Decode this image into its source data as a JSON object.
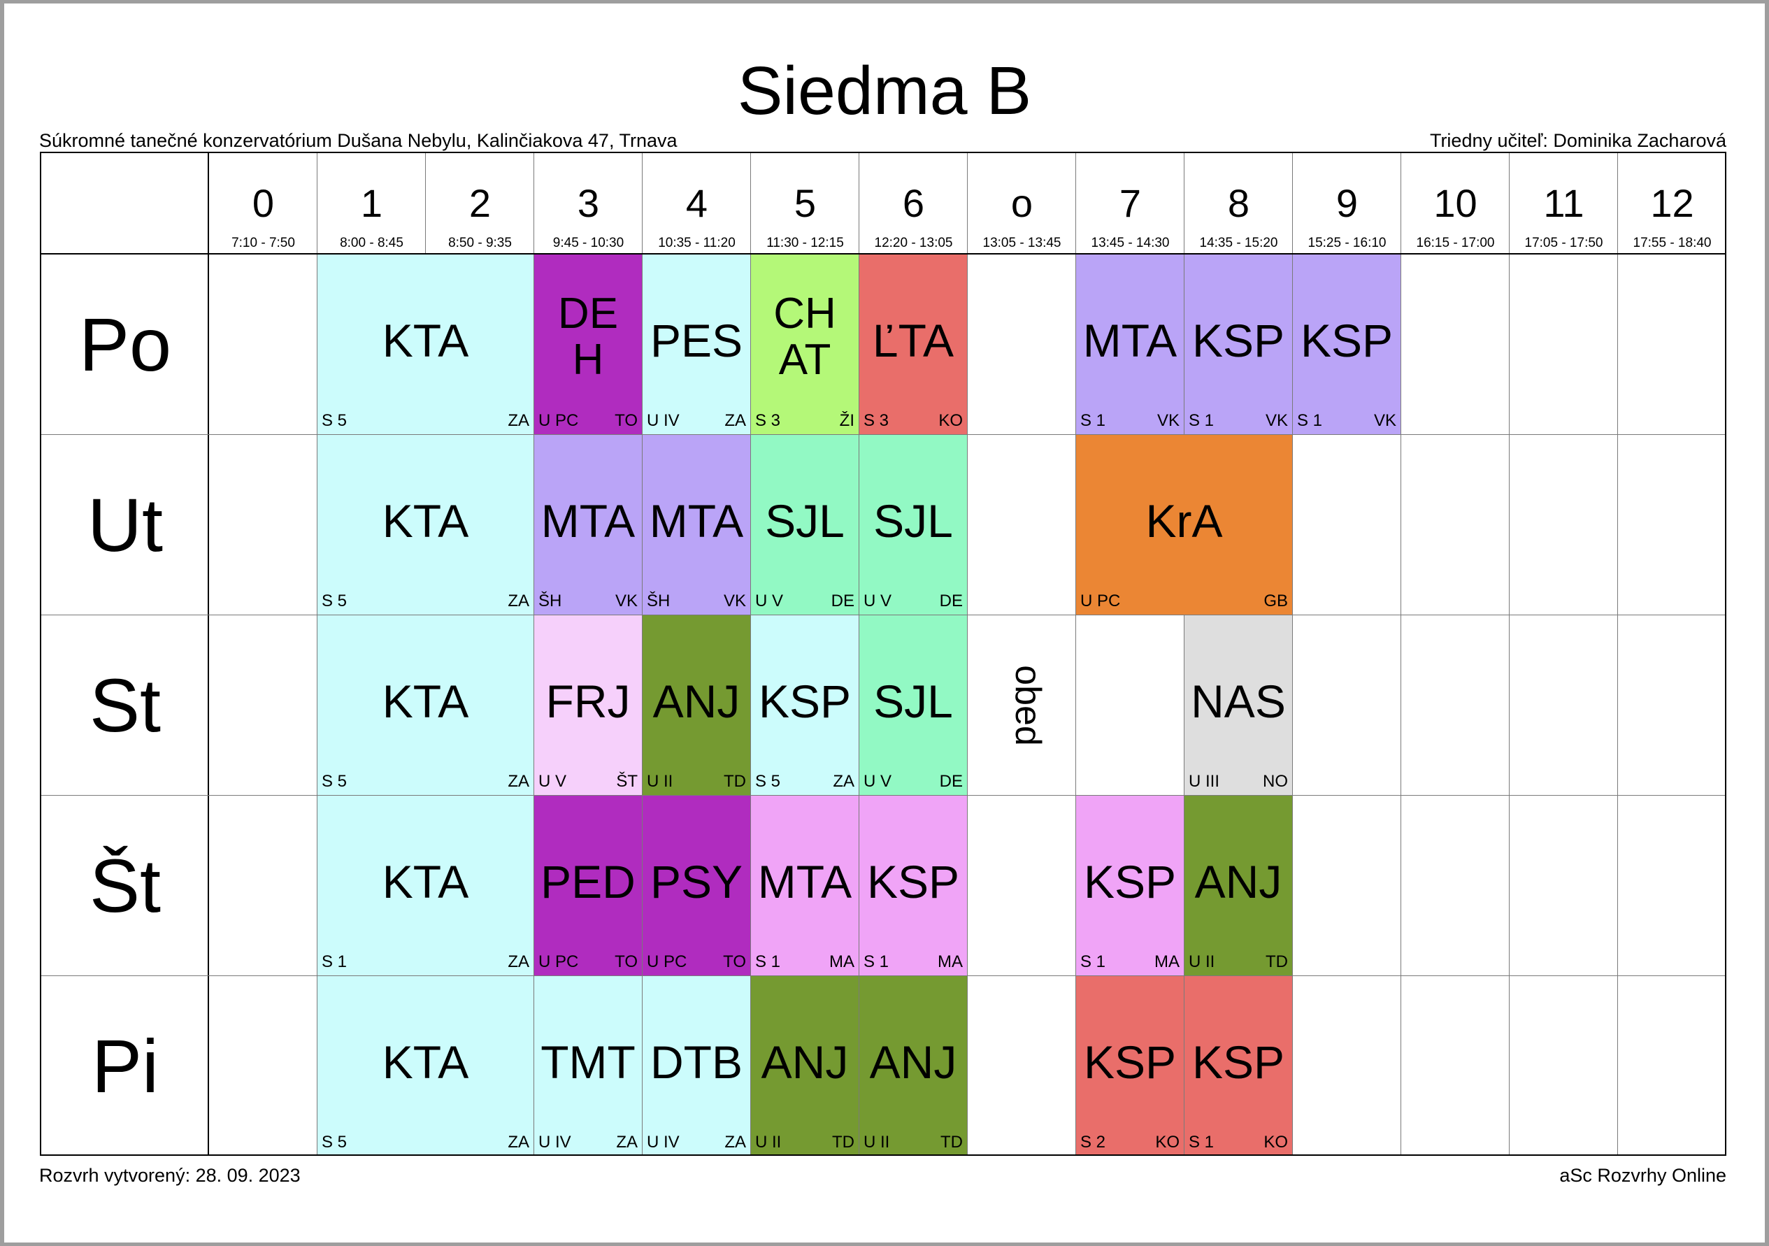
{
  "title": "Siedma B",
  "school": "Súkromné tanečné konzervatórium Dušana Nebylu, Kalinčiakova 47, Trnava",
  "class_teacher": "Triedny učiteľ: Dominika Zacharová",
  "created": "Rozvrh vytvorený: 28. 09. 2023",
  "brand": "aSc Rozvrhy Online",
  "lunch_label": "obed",
  "periods": [
    {
      "num": "0",
      "time": "7:10 - 7:50"
    },
    {
      "num": "1",
      "time": "8:00 - 8:45"
    },
    {
      "num": "2",
      "time": "8:50 - 9:35"
    },
    {
      "num": "3",
      "time": "9:45 - 10:30"
    },
    {
      "num": "4",
      "time": "10:35 - 11:20"
    },
    {
      "num": "5",
      "time": "11:30 - 12:15"
    },
    {
      "num": "6",
      "time": "12:20 - 13:05"
    },
    {
      "num": "o",
      "time": "13:05 - 13:45"
    },
    {
      "num": "7",
      "time": "13:45 - 14:30"
    },
    {
      "num": "8",
      "time": "14:35 - 15:20"
    },
    {
      "num": "9",
      "time": "15:25 - 16:10"
    },
    {
      "num": "10",
      "time": "16:15 - 17:00"
    },
    {
      "num": "11",
      "time": "17:05 - 17:50"
    },
    {
      "num": "12",
      "time": "17:55 - 18:40"
    }
  ],
  "colors": {
    "cyan": "#ccfcfc",
    "purple": "#b02cbf",
    "lavender": "#baa4f7",
    "lime": "#b4f878",
    "salmon": "#e96e6a",
    "mint": "#92f9c4",
    "orange": "#eb8634",
    "pink_light": "#f6d0fb",
    "olive": "#759a31",
    "pink": "#f0a4f7",
    "grey": "#dedede"
  },
  "days": [
    {
      "name": "Po",
      "lessons": [
        {
          "start": 1,
          "span": 2,
          "subject": "KTA",
          "room": "S 5",
          "teacher": "ZA",
          "color": "cyan"
        },
        {
          "start": 3,
          "span": 1,
          "subject": "DE\nH",
          "room": "U PC",
          "teacher": "TO",
          "color": "purple"
        },
        {
          "start": 4,
          "span": 1,
          "subject": "PES",
          "room": "U IV",
          "teacher": "ZA",
          "color": "cyan"
        },
        {
          "start": 5,
          "span": 1,
          "subject": "CH\nAT",
          "room": "S 3",
          "teacher": "ŽI",
          "color": "lime"
        },
        {
          "start": 6,
          "span": 1,
          "subject": "ĽTA",
          "room": "S 3",
          "teacher": "KO",
          "color": "salmon"
        },
        {
          "start": 8,
          "span": 1,
          "subject": "MTA",
          "room": "S 1",
          "teacher": "VK",
          "color": "lavender"
        },
        {
          "start": 9,
          "span": 1,
          "subject": "KSP",
          "room": "S 1",
          "teacher": "VK",
          "color": "lavender"
        },
        {
          "start": 10,
          "span": 1,
          "subject": "KSP",
          "room": "S 1",
          "teacher": "VK",
          "color": "lavender"
        }
      ]
    },
    {
      "name": "Ut",
      "lessons": [
        {
          "start": 1,
          "span": 2,
          "subject": "KTA",
          "room": "S 5",
          "teacher": "ZA",
          "color": "cyan"
        },
        {
          "start": 3,
          "span": 1,
          "subject": "MTA",
          "room": "ŠH",
          "teacher": "VK",
          "color": "lavender"
        },
        {
          "start": 4,
          "span": 1,
          "subject": "MTA",
          "room": "ŠH",
          "teacher": "VK",
          "color": "lavender"
        },
        {
          "start": 5,
          "span": 1,
          "subject": "SJL",
          "room": "U V",
          "teacher": "DE",
          "color": "mint"
        },
        {
          "start": 6,
          "span": 1,
          "subject": "SJL",
          "room": "U V",
          "teacher": "DE",
          "color": "mint"
        },
        {
          "start": 8,
          "span": 2,
          "subject": "KrA",
          "room": "U PC",
          "teacher": "GB",
          "color": "orange"
        }
      ]
    },
    {
      "name": "St",
      "lessons": [
        {
          "start": 1,
          "span": 2,
          "subject": "KTA",
          "room": "S 5",
          "teacher": "ZA",
          "color": "cyan"
        },
        {
          "start": 3,
          "span": 1,
          "subject": "FRJ",
          "room": "U V",
          "teacher": "ŠT",
          "color": "pink_light"
        },
        {
          "start": 4,
          "span": 1,
          "subject": "ANJ",
          "room": "U II",
          "teacher": "TD",
          "color": "olive"
        },
        {
          "start": 5,
          "span": 1,
          "subject": "KSP",
          "room": "S 5",
          "teacher": "ZA",
          "color": "cyan"
        },
        {
          "start": 6,
          "span": 1,
          "subject": "SJL",
          "room": "U V",
          "teacher": "DE",
          "color": "mint"
        },
        {
          "start": 9,
          "span": 1,
          "subject": "NAS",
          "room": "U III",
          "teacher": "NO",
          "color": "grey"
        }
      ]
    },
    {
      "name": "Št",
      "lessons": [
        {
          "start": 1,
          "span": 2,
          "subject": "KTA",
          "room": "S 1",
          "teacher": "ZA",
          "color": "cyan"
        },
        {
          "start": 3,
          "span": 1,
          "subject": "PED",
          "room": "U PC",
          "teacher": "TO",
          "color": "purple"
        },
        {
          "start": 4,
          "span": 1,
          "subject": "PSY",
          "room": "U PC",
          "teacher": "TO",
          "color": "purple"
        },
        {
          "start": 5,
          "span": 1,
          "subject": "MTA",
          "room": "S 1",
          "teacher": "MA",
          "color": "pink"
        },
        {
          "start": 6,
          "span": 1,
          "subject": "KSP",
          "room": "S 1",
          "teacher": "MA",
          "color": "pink"
        },
        {
          "start": 8,
          "span": 1,
          "subject": "KSP",
          "room": "S 1",
          "teacher": "MA",
          "color": "pink"
        },
        {
          "start": 9,
          "span": 1,
          "subject": "ANJ",
          "room": "U II",
          "teacher": "TD",
          "color": "olive"
        }
      ]
    },
    {
      "name": "Pi",
      "lessons": [
        {
          "start": 1,
          "span": 2,
          "subject": "KTA",
          "room": "S 5",
          "teacher": "ZA",
          "color": "cyan"
        },
        {
          "start": 3,
          "span": 1,
          "subject": "TMT",
          "room": "U IV",
          "teacher": "ZA",
          "color": "cyan"
        },
        {
          "start": 4,
          "span": 1,
          "subject": "DTB",
          "room": "U IV",
          "teacher": "ZA",
          "color": "cyan"
        },
        {
          "start": 5,
          "span": 1,
          "subject": "ANJ",
          "room": "U II",
          "teacher": "TD",
          "color": "olive"
        },
        {
          "start": 6,
          "span": 1,
          "subject": "ANJ",
          "room": "U II",
          "teacher": "TD",
          "color": "olive"
        },
        {
          "start": 8,
          "span": 1,
          "subject": "KSP",
          "room": "S 2",
          "teacher": "KO",
          "color": "salmon"
        },
        {
          "start": 9,
          "span": 1,
          "subject": "KSP",
          "room": "S 1",
          "teacher": "KO",
          "color": "salmon"
        }
      ]
    }
  ]
}
